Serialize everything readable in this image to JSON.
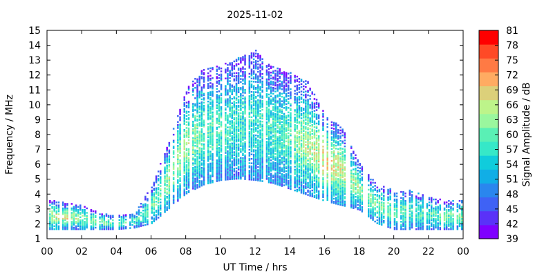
{
  "chart_data": {
    "type": "heatmap",
    "title": "2025-11-02",
    "xlabel": "UT Time / hrs",
    "ylabel": "Frequency / MHz",
    "xlim": [
      0,
      24
    ],
    "ylim": [
      1,
      15
    ],
    "x_ticks": [
      "00",
      "02",
      "04",
      "06",
      "08",
      "10",
      "12",
      "14",
      "16",
      "18",
      "20",
      "22",
      "00"
    ],
    "y_ticks": [
      "1",
      "2",
      "3",
      "4",
      "5",
      "6",
      "7",
      "8",
      "9",
      "10",
      "11",
      "12",
      "13",
      "14",
      "15"
    ],
    "colorbar": {
      "label": "Signal Amplitude / dB",
      "ticks": [
        "39",
        "42",
        "45",
        "48",
        "51",
        "54",
        "57",
        "60",
        "63",
        "66",
        "69",
        "72",
        "75",
        "78",
        "81"
      ],
      "range": [
        39,
        81
      ],
      "colors": [
        "#7f00ff",
        "#5a32f8",
        "#3f62f5",
        "#2a86ee",
        "#11aee6",
        "#10ccdc",
        "#36e8c8",
        "#5af0b5",
        "#9af79e",
        "#bdf48a",
        "#dcd07a",
        "#ffab62",
        "#ff7a44",
        "#ff4a26",
        "#ff0000"
      ]
    },
    "grid": false,
    "profile": {
      "hours": [
        0,
        1,
        2,
        3,
        4,
        5,
        6,
        7,
        8,
        9,
        10,
        11,
        12,
        13,
        14,
        15,
        16,
        17,
        18,
        19,
        20,
        21,
        22,
        23,
        24
      ],
      "max_freq": [
        3.6,
        3.4,
        3.2,
        2.7,
        2.5,
        2.7,
        4.5,
        7.5,
        11,
        12.4,
        12.6,
        13.1,
        13.6,
        12.5,
        12.1,
        11.5,
        9.3,
        8.4,
        6.0,
        4.6,
        4.3,
        4.2,
        3.8,
        3.5,
        3.6
      ],
      "min_freq": [
        1.6,
        1.6,
        1.6,
        1.6,
        1.6,
        1.7,
        2.0,
        3.0,
        4.0,
        4.6,
        4.9,
        5.0,
        4.9,
        4.7,
        4.3,
        3.9,
        3.5,
        3.2,
        2.9,
        2.0,
        1.6,
        1.6,
        1.6,
        1.6,
        1.6
      ],
      "peak_db": [
        62,
        66,
        62,
        60,
        58,
        58,
        60,
        63,
        63,
        60,
        58,
        57,
        57,
        58,
        60,
        64,
        68,
        66,
        62,
        62,
        60,
        58,
        58,
        60,
        62
      ]
    }
  }
}
